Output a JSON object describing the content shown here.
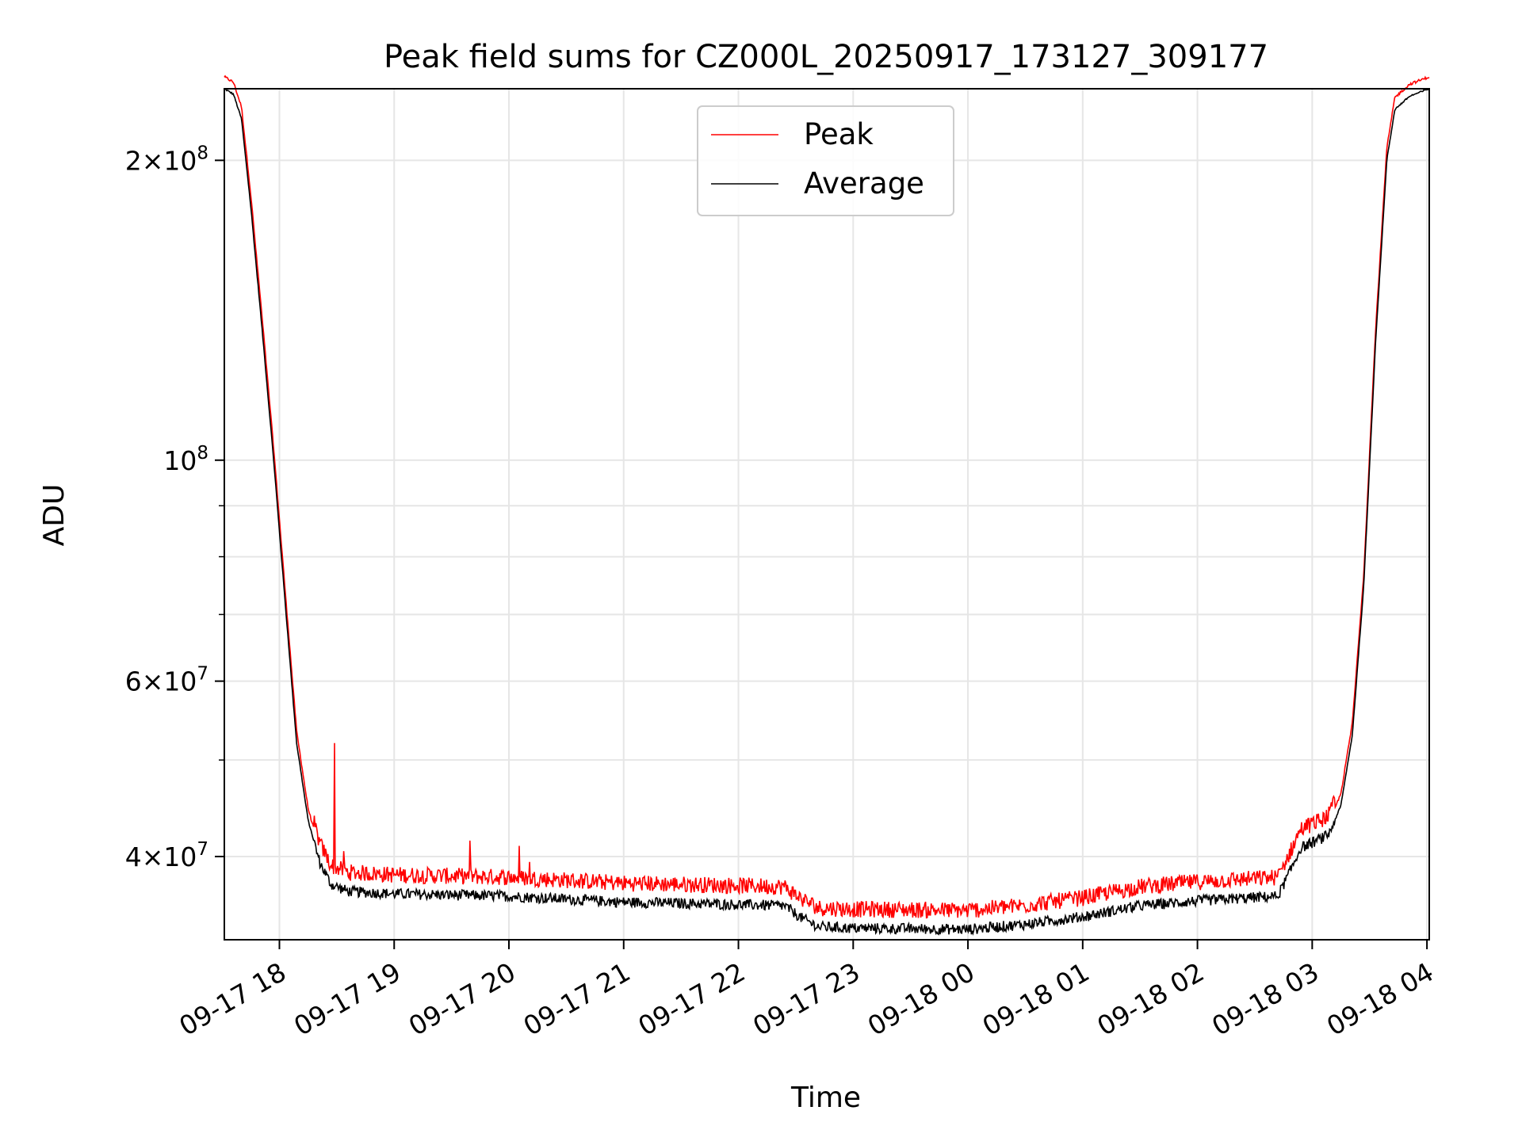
{
  "chart_data": {
    "type": "line",
    "title": "Peak field sums for CZ000L_20250917_173127_309177",
    "xlabel": "Time",
    "ylabel": "ADU",
    "y_scale": "log",
    "ylim": [
      33000000,
      236000000
    ],
    "grid": true,
    "legend_position": "top-center",
    "x_ticks": [
      {
        "hour": 0,
        "label": "09-17 18"
      },
      {
        "hour": 1,
        "label": "09-17 19"
      },
      {
        "hour": 2,
        "label": "09-17 20"
      },
      {
        "hour": 3,
        "label": "09-17 21"
      },
      {
        "hour": 4,
        "label": "09-17 22"
      },
      {
        "hour": 5,
        "label": "09-17 23"
      },
      {
        "hour": 6,
        "label": "09-18 00"
      },
      {
        "hour": 7,
        "label": "09-18 01"
      },
      {
        "hour": 8,
        "label": "09-18 02"
      },
      {
        "hour": 9,
        "label": "09-18 03"
      },
      {
        "hour": 10,
        "label": "09-18 04"
      }
    ],
    "xlim_hours": [
      -0.48,
      10.02
    ],
    "y_ticks": [
      {
        "value": 40000000,
        "mantissa": "4",
        "exp": "7"
      },
      {
        "value": 60000000,
        "mantissa": "6",
        "exp": "7"
      },
      {
        "value": 100000000,
        "mantissa": "",
        "exp": "8"
      },
      {
        "value": 200000000,
        "mantissa": "2",
        "exp": "8"
      }
    ],
    "y_minor_grid": [
      50000000,
      70000000,
      80000000,
      90000000
    ],
    "series": [
      {
        "name": "Peak",
        "color": "#ff0000"
      },
      {
        "name": "Average",
        "color": "#000000"
      }
    ],
    "average_profile": [
      [
        -0.48,
        236000000
      ],
      [
        -0.4,
        233000000
      ],
      [
        -0.33,
        220000000
      ],
      [
        -0.25,
        180000000
      ],
      [
        -0.15,
        135000000
      ],
      [
        -0.05,
        100000000
      ],
      [
        0.05,
        72000000
      ],
      [
        0.15,
        52000000
      ],
      [
        0.25,
        43500000
      ],
      [
        0.35,
        39500000
      ],
      [
        0.45,
        37500000
      ],
      [
        0.6,
        36900000
      ],
      [
        1.0,
        36700000
      ],
      [
        2.0,
        36500000
      ],
      [
        3.0,
        36000000
      ],
      [
        4.0,
        35800000
      ],
      [
        4.4,
        35700000
      ],
      [
        4.55,
        34700000
      ],
      [
        4.7,
        34000000
      ],
      [
        5.0,
        33900000
      ],
      [
        6.0,
        33800000
      ],
      [
        6.5,
        34200000
      ],
      [
        7.0,
        34800000
      ],
      [
        7.5,
        35700000
      ],
      [
        8.0,
        36100000
      ],
      [
        8.7,
        36500000
      ],
      [
        8.8,
        38500000
      ],
      [
        8.9,
        40800000
      ],
      [
        9.1,
        41800000
      ],
      [
        9.15,
        42200000
      ],
      [
        9.25,
        45000000
      ],
      [
        9.35,
        53000000
      ],
      [
        9.45,
        75000000
      ],
      [
        9.55,
        130000000
      ],
      [
        9.65,
        200000000
      ],
      [
        9.72,
        225000000
      ],
      [
        9.85,
        232000000
      ],
      [
        10.02,
        236000000
      ]
    ],
    "peak_offset_pct": 2.5,
    "peak_spikes": [
      {
        "hour": 0.48,
        "value": 52000000
      },
      {
        "hour": 0.56,
        "value": 40500000
      },
      {
        "hour": 1.66,
        "value": 41500000
      },
      {
        "hour": 2.09,
        "value": 41000000
      },
      {
        "hour": 2.18,
        "value": 39500000
      },
      {
        "hour": 3.0,
        "value": 37300000
      }
    ]
  }
}
